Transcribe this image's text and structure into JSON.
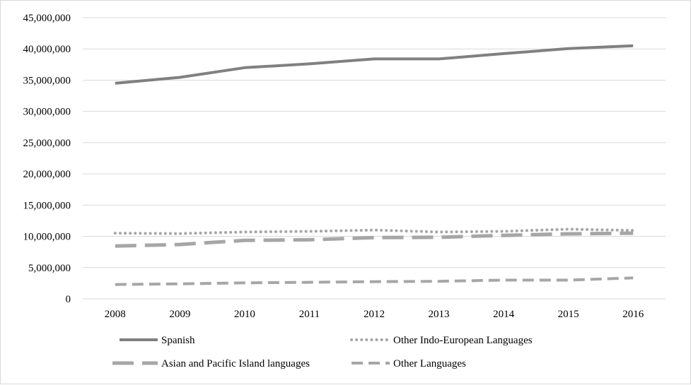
{
  "chart_data": {
    "type": "line",
    "title": "",
    "xlabel": "",
    "ylabel": "",
    "categories": [
      "2008",
      "2009",
      "2010",
      "2011",
      "2012",
      "2013",
      "2014",
      "2015",
      "2016"
    ],
    "ylim": [
      0,
      45000000
    ],
    "yticks": [
      0,
      5000000,
      10000000,
      15000000,
      20000000,
      25000000,
      30000000,
      35000000,
      40000000,
      45000000
    ],
    "ytick_labels": [
      "0",
      "5,000,000",
      "10,000,000",
      "15,000,000",
      "20,000,000",
      "25,000,000",
      "30,000,000",
      "35,000,000",
      "40,000,000",
      "45,000,000"
    ],
    "grid": "horizontal",
    "legend_position": "bottom",
    "series": [
      {
        "name": "Spanish",
        "style": "solid",
        "color": "#808080",
        "values": [
          34500000,
          35450000,
          37000000,
          37600000,
          38400000,
          38400000,
          39250000,
          40050000,
          40500000
        ]
      },
      {
        "name": "Other Indo-European Languages",
        "style": "dotted",
        "color": "#a6a6a6",
        "values": [
          10500000,
          10450000,
          10700000,
          10800000,
          11000000,
          10700000,
          10800000,
          11150000,
          10950000
        ]
      },
      {
        "name": "Asian and Pacific Island languages",
        "style": "long-dash",
        "color": "#a6a6a6",
        "values": [
          8450000,
          8700000,
          9350000,
          9450000,
          9800000,
          9850000,
          10150000,
          10400000,
          10500000
        ]
      },
      {
        "name": "Other Languages",
        "style": "dash",
        "color": "#a6a6a6",
        "values": [
          2300000,
          2400000,
          2550000,
          2650000,
          2750000,
          2800000,
          3000000,
          3000000,
          3350000
        ]
      }
    ]
  }
}
